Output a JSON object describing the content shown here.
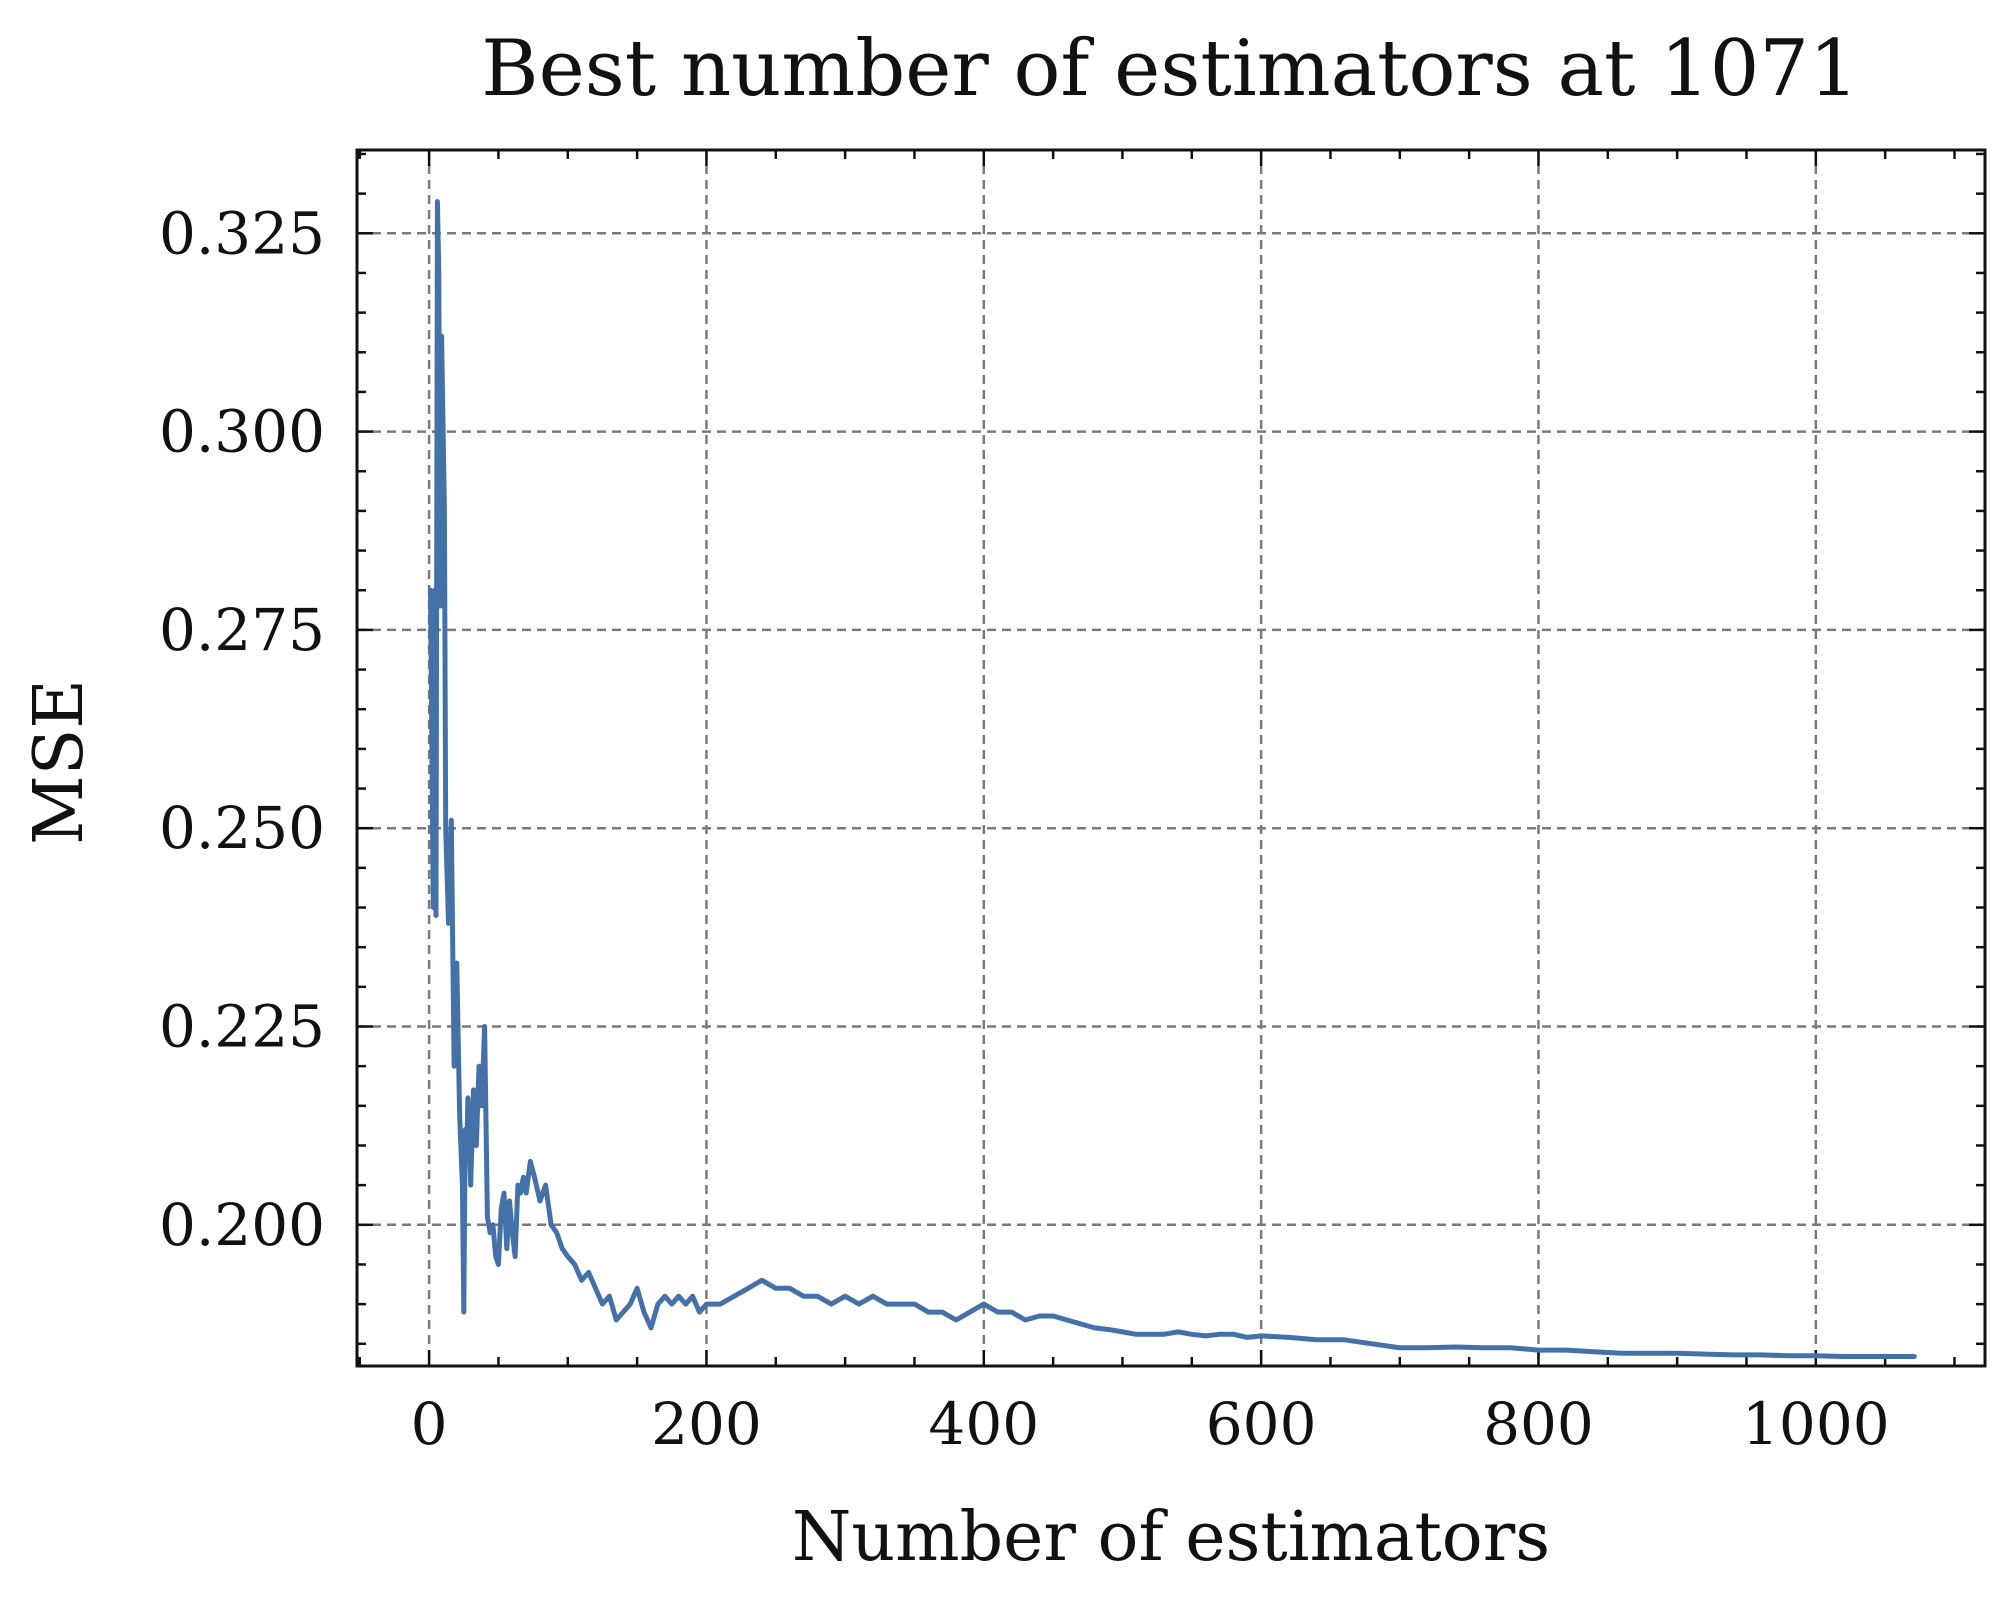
{
  "chart_data": {
    "type": "line",
    "title": "Best number of estimators at 1071",
    "xlabel": "Number of estimators",
    "ylabel": "MSE",
    "xlim": [
      -52,
      1122
    ],
    "ylim": [
      0.1822,
      0.3355
    ],
    "x_ticks": [
      0,
      200,
      400,
      600,
      800,
      1000
    ],
    "x_tick_labels": [
      "0",
      "200",
      "400",
      "600",
      "800",
      "1000"
    ],
    "y_ticks": [
      0.2,
      0.225,
      0.25,
      0.275,
      0.3,
      0.325
    ],
    "y_tick_labels": [
      "0.200",
      "0.225",
      "0.250",
      "0.275",
      "0.300",
      "0.325"
    ],
    "grid": true,
    "line_color": "#4472a8",
    "series": [
      {
        "x": [
          1,
          3,
          4,
          5,
          6,
          7,
          8,
          9,
          11,
          12,
          14,
          16,
          18,
          20,
          22,
          24,
          25,
          26,
          27,
          28,
          30,
          32,
          34,
          36,
          38,
          40,
          42,
          44,
          46,
          48,
          50,
          52,
          54,
          56,
          58,
          60,
          62,
          64,
          66,
          68,
          70,
          73,
          76,
          80,
          84,
          88,
          92,
          96,
          100,
          105,
          110,
          115,
          120,
          125,
          130,
          135,
          140,
          145,
          150,
          155,
          160,
          165,
          170,
          175,
          180,
          185,
          190,
          195,
          200,
          210,
          220,
          230,
          240,
          250,
          260,
          270,
          280,
          290,
          300,
          310,
          320,
          330,
          340,
          350,
          360,
          370,
          380,
          390,
          400,
          410,
          420,
          430,
          440,
          450,
          460,
          470,
          480,
          490,
          500,
          510,
          520,
          530,
          540,
          550,
          560,
          570,
          580,
          590,
          600,
          620,
          640,
          660,
          680,
          700,
          720,
          740,
          760,
          780,
          800,
          820,
          840,
          860,
          880,
          900,
          920,
          940,
          960,
          980,
          1000,
          1020,
          1040,
          1071
        ],
        "y": [
          0.28,
          0.24,
          0.28,
          0.239,
          0.329,
          0.32,
          0.278,
          0.312,
          0.29,
          0.25,
          0.238,
          0.251,
          0.22,
          0.233,
          0.214,
          0.205,
          0.189,
          0.212,
          0.208,
          0.216,
          0.205,
          0.217,
          0.21,
          0.22,
          0.215,
          0.225,
          0.201,
          0.199,
          0.2,
          0.196,
          0.195,
          0.202,
          0.204,
          0.197,
          0.203,
          0.199,
          0.196,
          0.205,
          0.204,
          0.206,
          0.204,
          0.208,
          0.206,
          0.203,
          0.205,
          0.2,
          0.199,
          0.197,
          0.196,
          0.195,
          0.193,
          0.194,
          0.192,
          0.19,
          0.191,
          0.188,
          0.189,
          0.19,
          0.192,
          0.189,
          0.187,
          0.19,
          0.191,
          0.19,
          0.191,
          0.19,
          0.191,
          0.189,
          0.19,
          0.19,
          0.191,
          0.192,
          0.193,
          0.192,
          0.192,
          0.191,
          0.191,
          0.19,
          0.191,
          0.19,
          0.191,
          0.19,
          0.19,
          0.19,
          0.189,
          0.189,
          0.188,
          0.189,
          0.19,
          0.189,
          0.189,
          0.188,
          0.1885,
          0.1885,
          0.188,
          0.1875,
          0.187,
          0.1868,
          0.1865,
          0.1862,
          0.1862,
          0.1862,
          0.1865,
          0.1862,
          0.186,
          0.1862,
          0.1862,
          0.1858,
          0.186,
          0.1858,
          0.1855,
          0.1855,
          0.185,
          0.1845,
          0.1845,
          0.1846,
          0.1845,
          0.1845,
          0.1842,
          0.1842,
          0.184,
          0.1838,
          0.1838,
          0.1838,
          0.1837,
          0.1836,
          0.1836,
          0.1835,
          0.1835,
          0.1834,
          0.1834,
          0.1834
        ]
      }
    ]
  }
}
